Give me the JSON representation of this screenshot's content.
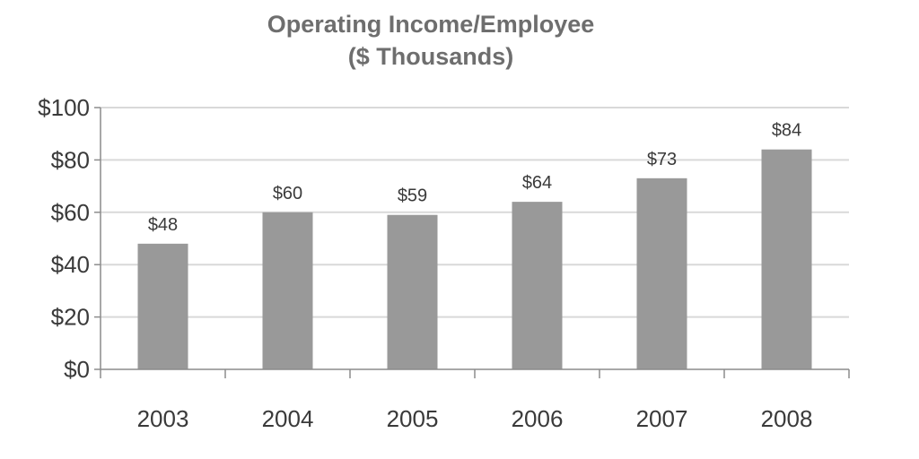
{
  "chart_data": {
    "type": "bar",
    "title": [
      "Operating Income/Employee",
      "($ Thousands)"
    ],
    "categories": [
      "2003",
      "2004",
      "2005",
      "2006",
      "2007",
      "2008"
    ],
    "values": [
      48,
      60,
      59,
      64,
      73,
      84
    ],
    "data_labels": [
      "$48",
      "$60",
      "$59",
      "$64",
      "$73",
      "$84"
    ],
    "yticks": [
      0,
      20,
      40,
      60,
      80,
      100
    ],
    "ytick_labels": [
      "$0",
      "$20",
      "$40",
      "$60",
      "$80",
      "$100"
    ],
    "ylim": [
      0,
      100
    ],
    "xlabel": "",
    "ylabel": "",
    "grid": true,
    "legend": "none",
    "colors": {
      "bar": "#999999",
      "grid": "#d9d9d9",
      "axis": "#8c8c8c",
      "title": "#6e6e6e",
      "text": "#3a3a3a"
    }
  }
}
